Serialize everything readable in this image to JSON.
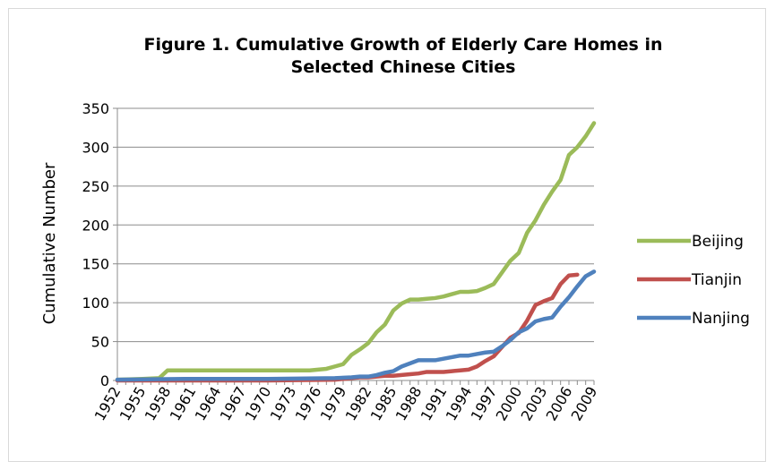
{
  "chart_data": {
    "type": "line",
    "title": "Figure 1. Cumulative Growth of Elderly Care Homes in Selected Chinese Cities",
    "xlabel": "",
    "ylabel": "Cumulative Number",
    "ylim": [
      0,
      350
    ],
    "yticks": [
      0,
      50,
      100,
      150,
      200,
      250,
      300,
      350
    ],
    "xlim": [
      1952,
      2009
    ],
    "xticks": [
      1952,
      1955,
      1958,
      1961,
      1964,
      1967,
      1970,
      1973,
      1976,
      1979,
      1982,
      1985,
      1988,
      1991,
      1994,
      1997,
      2000,
      2003,
      2006,
      2009
    ],
    "grid": "horizontal",
    "legend_position": "right",
    "series": [
      {
        "name": "Beijing",
        "color": "#9bbb59",
        "points": [
          [
            1952,
            1
          ],
          [
            1955,
            2
          ],
          [
            1957,
            3
          ],
          [
            1958,
            13
          ],
          [
            1960,
            13
          ],
          [
            1965,
            13
          ],
          [
            1970,
            13
          ],
          [
            1975,
            13
          ],
          [
            1976,
            14
          ],
          [
            1977,
            15
          ],
          [
            1978,
            18
          ],
          [
            1979,
            21
          ],
          [
            1980,
            33
          ],
          [
            1981,
            40
          ],
          [
            1982,
            48
          ],
          [
            1983,
            62
          ],
          [
            1984,
            72
          ],
          [
            1985,
            90
          ],
          [
            1986,
            99
          ],
          [
            1987,
            104
          ],
          [
            1988,
            104
          ],
          [
            1989,
            105
          ],
          [
            1990,
            106
          ],
          [
            1991,
            108
          ],
          [
            1992,
            111
          ],
          [
            1993,
            114
          ],
          [
            1994,
            114
          ],
          [
            1995,
            115
          ],
          [
            1996,
            119
          ],
          [
            1997,
            124
          ],
          [
            1998,
            139
          ],
          [
            1999,
            154
          ],
          [
            2000,
            164
          ],
          [
            2001,
            190
          ],
          [
            2002,
            206
          ],
          [
            2003,
            226
          ],
          [
            2004,
            243
          ],
          [
            2005,
            258
          ],
          [
            2006,
            290
          ],
          [
            2007,
            300
          ],
          [
            2008,
            314
          ],
          [
            2009,
            331
          ]
        ]
      },
      {
        "name": "Tianjin",
        "color": "#c0504d",
        "points": [
          [
            1952,
            0
          ],
          [
            1960,
            0
          ],
          [
            1970,
            0
          ],
          [
            1978,
            1
          ],
          [
            1979,
            2
          ],
          [
            1980,
            3
          ],
          [
            1981,
            4
          ],
          [
            1982,
            4
          ],
          [
            1983,
            5
          ],
          [
            1984,
            6
          ],
          [
            1985,
            6
          ],
          [
            1986,
            7
          ],
          [
            1987,
            8
          ],
          [
            1988,
            9
          ],
          [
            1989,
            11
          ],
          [
            1990,
            11
          ],
          [
            1991,
            11
          ],
          [
            1992,
            12
          ],
          [
            1993,
            13
          ],
          [
            1994,
            14
          ],
          [
            1995,
            18
          ],
          [
            1996,
            25
          ],
          [
            1997,
            31
          ],
          [
            1998,
            43
          ],
          [
            1999,
            55
          ],
          [
            2000,
            61
          ],
          [
            2001,
            77
          ],
          [
            2002,
            97
          ],
          [
            2003,
            102
          ],
          [
            2004,
            106
          ],
          [
            2005,
            124
          ],
          [
            2006,
            135
          ],
          [
            2007,
            136
          ]
        ]
      },
      {
        "name": "Nanjing",
        "color": "#4f81bd",
        "points": [
          [
            1952,
            1
          ],
          [
            1960,
            2
          ],
          [
            1970,
            2
          ],
          [
            1978,
            3
          ],
          [
            1980,
            4
          ],
          [
            1981,
            5
          ],
          [
            1982,
            5
          ],
          [
            1983,
            7
          ],
          [
            1984,
            10
          ],
          [
            1985,
            12
          ],
          [
            1986,
            18
          ],
          [
            1987,
            22
          ],
          [
            1988,
            26
          ],
          [
            1989,
            26
          ],
          [
            1990,
            26
          ],
          [
            1991,
            28
          ],
          [
            1992,
            30
          ],
          [
            1993,
            32
          ],
          [
            1994,
            32
          ],
          [
            1995,
            34
          ],
          [
            1996,
            36
          ],
          [
            1997,
            37
          ],
          [
            1998,
            44
          ],
          [
            1999,
            52
          ],
          [
            2000,
            62
          ],
          [
            2001,
            67
          ],
          [
            2002,
            76
          ],
          [
            2003,
            79
          ],
          [
            2004,
            81
          ],
          [
            2005,
            95
          ],
          [
            2006,
            107
          ],
          [
            2007,
            121
          ],
          [
            2008,
            134
          ],
          [
            2009,
            140
          ]
        ]
      }
    ]
  }
}
